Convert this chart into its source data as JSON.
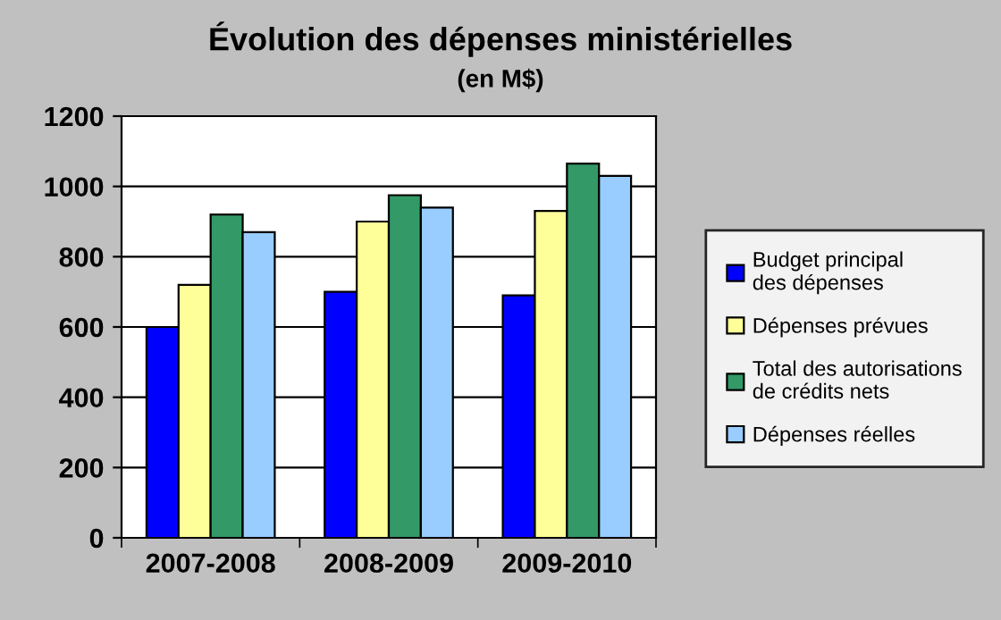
{
  "chart_data": {
    "type": "bar",
    "title": "Évolution des dépenses ministérielles",
    "subtitle": "(en M$)",
    "categories": [
      "2007-2008",
      "2008-2009",
      "2009-2010"
    ],
    "series": [
      {
        "name": "Budget principal\ndes dépenses",
        "color": "#0000ff",
        "values": [
          600,
          700,
          690
        ]
      },
      {
        "name": "Dépenses prévues",
        "color": "#ffff99",
        "values": [
          720,
          900,
          930
        ]
      },
      {
        "name": "Total des autorisations\nde crédits nets",
        "color": "#339966",
        "values": [
          920,
          975,
          1065
        ]
      },
      {
        "name": "Dépenses réelles",
        "color": "#99ccff",
        "values": [
          870,
          940,
          1030
        ]
      }
    ],
    "ylim": [
      0,
      1200
    ],
    "yticks": [
      0,
      200,
      400,
      600,
      800,
      1000,
      1200
    ],
    "grid": "y",
    "legend": "right"
  }
}
